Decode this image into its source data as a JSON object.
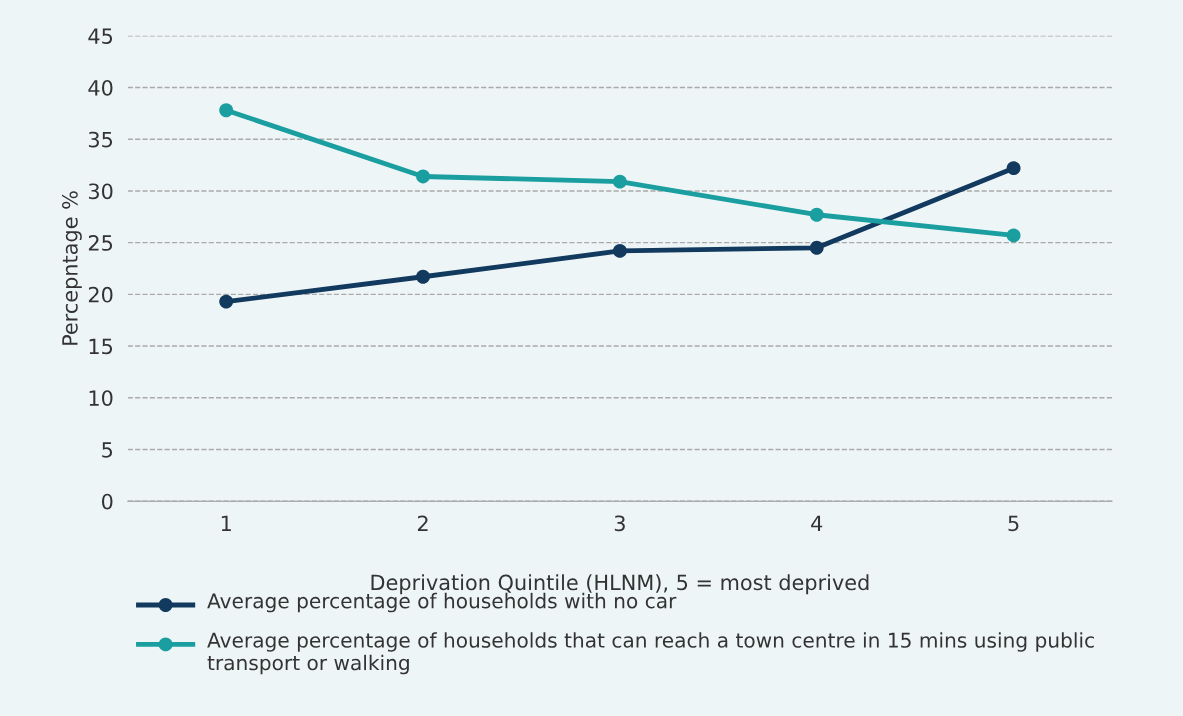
{
  "chart_data": {
    "type": "line",
    "xlabel": "Deprivation Quintile (HLNM), 5 = most deprived",
    "ylabel": "Percepntage %",
    "categories": [
      "1",
      "2",
      "3",
      "4",
      "5"
    ],
    "series": [
      {
        "name": "Average percentage of households with no car",
        "color": "#123a5e",
        "values": [
          19.3,
          21.7,
          24.2,
          24.5,
          32.2
        ]
      },
      {
        "name": "Average percentage of households that can reach a town centre in 15 mins using public transport or walking",
        "color": "#1a9ea0",
        "values": [
          37.8,
          31.4,
          30.9,
          27.7,
          25.7
        ]
      }
    ],
    "ylim": [
      0,
      45
    ],
    "yticks": [
      0,
      5,
      10,
      15,
      20,
      25,
      30,
      35,
      40,
      45
    ],
    "grid": "y",
    "legend": "bottom",
    "marker": "circle",
    "line_style": "solid"
  }
}
